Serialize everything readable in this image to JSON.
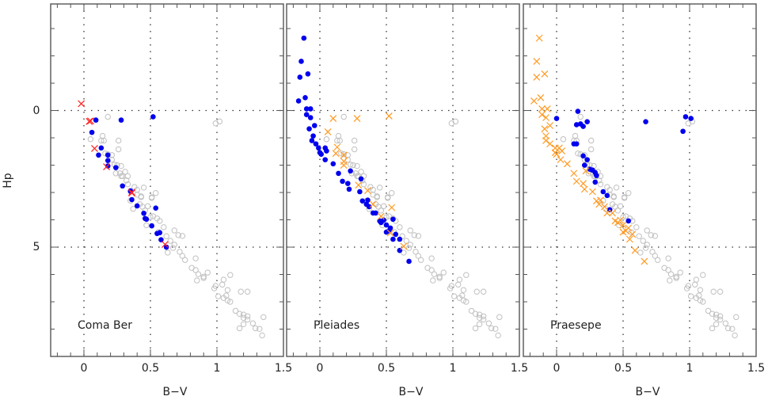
{
  "chart_data": {
    "type": "scatter",
    "xlabel": "B−V",
    "ylabel": "Hp",
    "xlim": [
      -0.25,
      1.5
    ],
    "ylim": [
      9.0,
      -3.9
    ],
    "y_inverted": true,
    "grid": "dotted lines at B-V = 0, 0.5, 1 and Hp = 0, 5",
    "x_ticks": [
      "0",
      "0.5",
      "1",
      "1.5"
    ],
    "y_ticks": [
      "0",
      "5"
    ],
    "colors": {
      "background": "#c0c0c0",
      "blue": "#0000ee",
      "red": "#ff2222",
      "orange": "#ff9922"
    },
    "background_points": [
      [
        0.18,
        0.23
      ],
      [
        0.14,
        0.93
      ],
      [
        0.05,
        1.05
      ],
      [
        0.13,
        1.1
      ],
      [
        0.15,
        1.1
      ],
      [
        0.26,
        1.1
      ],
      [
        0.26,
        1.42
      ],
      [
        0.16,
        1.57
      ],
      [
        0.18,
        1.6
      ],
      [
        0.21,
        1.63
      ],
      [
        0.21,
        1.8
      ],
      [
        0.23,
        1.98
      ],
      [
        0.25,
        2.0
      ],
      [
        0.28,
        2.03
      ],
      [
        0.24,
        2.3
      ],
      [
        0.27,
        2.3
      ],
      [
        0.31,
        2.24
      ],
      [
        0.29,
        2.4
      ],
      [
        0.32,
        2.56
      ],
      [
        0.33,
        2.7
      ],
      [
        0.38,
        2.8
      ],
      [
        0.45,
        2.82
      ],
      [
        0.4,
        2.9
      ],
      [
        0.28,
        2.4
      ],
      [
        0.33,
        2.4
      ],
      [
        0.43,
        3.14
      ],
      [
        0.54,
        3.02
      ],
      [
        0.51,
        3.17
      ],
      [
        0.4,
        3.08
      ],
      [
        0.43,
        3.17
      ],
      [
        0.51,
        3.2
      ],
      [
        0.42,
        3.43
      ],
      [
        0.44,
        3.52
      ],
      [
        0.46,
        3.66
      ],
      [
        0.52,
        3.87
      ],
      [
        0.55,
        3.95
      ],
      [
        0.57,
        4.04
      ],
      [
        0.6,
        4.27
      ],
      [
        0.68,
        4.39
      ],
      [
        0.71,
        4.56
      ],
      [
        0.74,
        4.59
      ],
      [
        0.65,
        4.77
      ],
      [
        0.68,
        4.91
      ],
      [
        0.67,
        5.03
      ],
      [
        0.72,
        5.17
      ],
      [
        0.74,
        5.32
      ],
      [
        0.76,
        5.47
      ],
      [
        0.84,
        5.41
      ],
      [
        0.81,
        5.76
      ],
      [
        0.84,
        5.84
      ],
      [
        0.86,
        5.99
      ],
      [
        0.93,
        5.93
      ],
      [
        0.9,
        6.08
      ],
      [
        0.85,
        6.22
      ],
      [
        0.9,
        6.13
      ],
      [
        0.98,
        6.51
      ],
      [
        0.99,
        6.42
      ],
      [
        1.04,
        6.37
      ],
      [
        1.1,
        6.02
      ],
      [
        1.05,
        6.19
      ],
      [
        1.08,
        6.57
      ],
      [
        1.01,
        6.8
      ],
      [
        1.05,
        6.86
      ],
      [
        1.08,
        6.95
      ],
      [
        1.07,
        6.77
      ],
      [
        1.1,
        7.0
      ],
      [
        1.18,
        6.63
      ],
      [
        1.23,
        6.63
      ],
      [
        1.14,
        7.33
      ],
      [
        1.17,
        7.44
      ],
      [
        1.2,
        7.47
      ],
      [
        1.23,
        7.53
      ],
      [
        1.23,
        7.65
      ],
      [
        1.2,
        7.59
      ],
      [
        1.27,
        7.79
      ],
      [
        1.35,
        7.56
      ],
      [
        1.17,
        7.97
      ],
      [
        1.2,
        7.82
      ],
      [
        1.29,
        7.97
      ],
      [
        1.32,
        7.99
      ],
      [
        1.34,
        8.23
      ],
      [
        0.99,
        0.47
      ],
      [
        1.02,
        0.4
      ],
      [
        0.35,
        3.3
      ],
      [
        0.37,
        3.6
      ],
      [
        0.48,
        3.5
      ],
      [
        0.5,
        3.9
      ],
      [
        0.47,
        4.2
      ],
      [
        0.56,
        4.45
      ],
      [
        0.62,
        4.6
      ],
      [
        0.63,
        5.2
      ]
    ],
    "panels": [
      {
        "label": "Coma Ber",
        "series": [
          {
            "marker": "filled-circle",
            "color": "#0000ee",
            "points": [
              [
                0.09,
                0.35
              ],
              [
                0.28,
                0.35
              ],
              [
                0.52,
                0.23
              ],
              [
                0.06,
                0.8
              ],
              [
                0.13,
                1.37
              ],
              [
                0.11,
                1.63
              ],
              [
                0.18,
                1.63
              ],
              [
                0.18,
                1.83
              ],
              [
                0.18,
                2.03
              ],
              [
                0.24,
                2.09
              ],
              [
                0.29,
                2.76
              ],
              [
                0.35,
                2.94
              ],
              [
                0.35,
                2.96
              ],
              [
                0.36,
                3.26
              ],
              [
                0.4,
                3.49
              ],
              [
                0.54,
                3.57
              ],
              [
                0.45,
                3.76
              ],
              [
                0.46,
                3.95
              ],
              [
                0.47,
                3.98
              ],
              [
                0.51,
                4.22
              ],
              [
                0.55,
                4.5
              ],
              [
                0.57,
                4.47
              ],
              [
                0.58,
                4.73
              ],
              [
                0.62,
                5.0
              ]
            ]
          },
          {
            "marker": "cross",
            "color": "#ff2222",
            "points": [
              [
                -0.02,
                -0.25
              ],
              [
                0.04,
                0.4
              ],
              [
                0.05,
                0.38
              ],
              [
                0.08,
                1.39
              ],
              [
                0.17,
                2.06
              ],
              [
                0.36,
                2.99
              ],
              [
                0.36,
                3.02
              ],
              [
                0.61,
                4.9
              ]
            ]
          }
        ]
      },
      {
        "label": "Pleiades",
        "series": [
          {
            "marker": "filled-circle",
            "color": "#0000ee",
            "points": [
              [
                -0.12,
                -2.65
              ],
              [
                -0.14,
                -1.8
              ],
              [
                -0.15,
                -1.22
              ],
              [
                -0.09,
                -1.34
              ],
              [
                -0.11,
                -0.47
              ],
              [
                -0.16,
                -0.35
              ],
              [
                -0.1,
                -0.06
              ],
              [
                -0.07,
                -0.06
              ],
              [
                -0.1,
                0.15
              ],
              [
                -0.07,
                0.26
              ],
              [
                -0.04,
                0.55
              ],
              [
                -0.08,
                0.67
              ],
              [
                -0.05,
                0.93
              ],
              [
                -0.06,
                1.1
              ],
              [
                -0.03,
                1.22
              ],
              [
                -0.01,
                1.37
              ],
              [
                0.0,
                1.54
              ],
              [
                0.01,
                1.6
              ],
              [
                0.04,
                1.37
              ],
              [
                0.05,
                1.48
              ],
              [
                0.04,
                1.8
              ],
              [
                0.1,
                1.95
              ],
              [
                0.14,
                2.3
              ],
              [
                0.23,
                2.21
              ],
              [
                0.31,
                2.5
              ],
              [
                0.17,
                2.59
              ],
              [
                0.21,
                2.67
              ],
              [
                0.22,
                2.88
              ],
              [
                0.3,
                2.97
              ],
              [
                0.32,
                3.31
              ],
              [
                0.36,
                3.28
              ],
              [
                0.35,
                3.43
              ],
              [
                0.37,
                3.52
              ],
              [
                0.4,
                3.75
              ],
              [
                0.42,
                3.75
              ],
              [
                0.45,
                4.04
              ],
              [
                0.48,
                4.01
              ],
              [
                0.46,
                4.1
              ],
              [
                0.55,
                3.98
              ],
              [
                0.5,
                4.19
              ],
              [
                0.53,
                4.3
              ],
              [
                0.5,
                4.45
              ],
              [
                0.52,
                4.4
              ],
              [
                0.57,
                4.53
              ],
              [
                0.55,
                4.71
              ],
              [
                0.6,
                4.71
              ],
              [
                0.6,
                5.12
              ],
              [
                0.67,
                5.52
              ]
            ]
          },
          {
            "marker": "cross",
            "color": "#ff9922",
            "points": [
              [
                0.1,
                0.29
              ],
              [
                0.28,
                0.29
              ],
              [
                0.52,
                0.2
              ],
              [
                0.06,
                0.78
              ],
              [
                0.13,
                1.34
              ],
              [
                0.12,
                1.57
              ],
              [
                0.18,
                1.63
              ],
              [
                0.18,
                1.86
              ],
              [
                0.18,
                2.0
              ],
              [
                0.29,
                2.73
              ],
              [
                0.36,
                2.93
              ],
              [
                0.4,
                3.43
              ],
              [
                0.54,
                3.55
              ],
              [
                0.46,
                3.87
              ],
              [
                0.53,
                4.48
              ],
              [
                0.63,
                4.97
              ]
            ]
          }
        ]
      },
      {
        "label": "Praesepe",
        "series": [
          {
            "marker": "filled-circle",
            "color": "#0000ee",
            "points": [
              [
                0.16,
                0.03
              ],
              [
                0.0,
                0.29
              ],
              [
                0.23,
                0.41
              ],
              [
                0.15,
                0.52
              ],
              [
                0.18,
                0.49
              ],
              [
                0.2,
                0.58
              ],
              [
                0.67,
                0.41
              ],
              [
                0.97,
                0.23
              ],
              [
                1.01,
                0.29
              ],
              [
                0.95,
                0.76
              ],
              [
                0.13,
                1.22
              ],
              [
                0.15,
                1.22
              ],
              [
                0.2,
                1.66
              ],
              [
                0.23,
                1.8
              ],
              [
                0.21,
                2.0
              ],
              [
                0.25,
                2.15
              ],
              [
                0.27,
                2.18
              ],
              [
                0.29,
                2.27
              ],
              [
                0.3,
                2.38
              ],
              [
                0.29,
                2.62
              ],
              [
                0.35,
                2.97
              ],
              [
                0.38,
                3.11
              ],
              [
                0.4,
                3.63
              ],
              [
                0.54,
                4.04
              ]
            ]
          },
          {
            "marker": "cross",
            "color": "#ff9922",
            "points": [
              [
                -0.13,
                -2.65
              ],
              [
                -0.15,
                -1.8
              ],
              [
                -0.15,
                -1.22
              ],
              [
                -0.09,
                -1.34
              ],
              [
                -0.12,
                -0.47
              ],
              [
                -0.17,
                -0.35
              ],
              [
                -0.11,
                -0.06
              ],
              [
                -0.07,
                -0.06
              ],
              [
                -0.11,
                0.15
              ],
              [
                -0.08,
                0.26
              ],
              [
                -0.05,
                0.55
              ],
              [
                -0.09,
                0.67
              ],
              [
                -0.08,
                0.93
              ],
              [
                -0.08,
                1.1
              ],
              [
                -0.05,
                1.22
              ],
              [
                -0.01,
                1.37
              ],
              [
                -0.01,
                1.54
              ],
              [
                0.0,
                1.6
              ],
              [
                0.02,
                1.37
              ],
              [
                0.04,
                1.48
              ],
              [
                0.03,
                1.8
              ],
              [
                0.08,
                1.95
              ],
              [
                0.13,
                2.3
              ],
              [
                0.22,
                2.21
              ],
              [
                0.15,
                2.59
              ],
              [
                0.2,
                2.67
              ],
              [
                0.21,
                2.88
              ],
              [
                0.27,
                2.97
              ],
              [
                0.3,
                3.31
              ],
              [
                0.33,
                3.28
              ],
              [
                0.32,
                3.43
              ],
              [
                0.36,
                3.52
              ],
              [
                0.38,
                3.75
              ],
              [
                0.42,
                3.75
              ],
              [
                0.44,
                4.04
              ],
              [
                0.48,
                4.01
              ],
              [
                0.46,
                4.1
              ],
              [
                0.5,
                4.19
              ],
              [
                0.54,
                4.3
              ],
              [
                0.5,
                4.45
              ],
              [
                0.52,
                4.4
              ],
              [
                0.55,
                4.71
              ],
              [
                0.57,
                4.53
              ],
              [
                0.59,
                5.12
              ],
              [
                0.66,
                5.52
              ]
            ]
          }
        ]
      }
    ]
  }
}
